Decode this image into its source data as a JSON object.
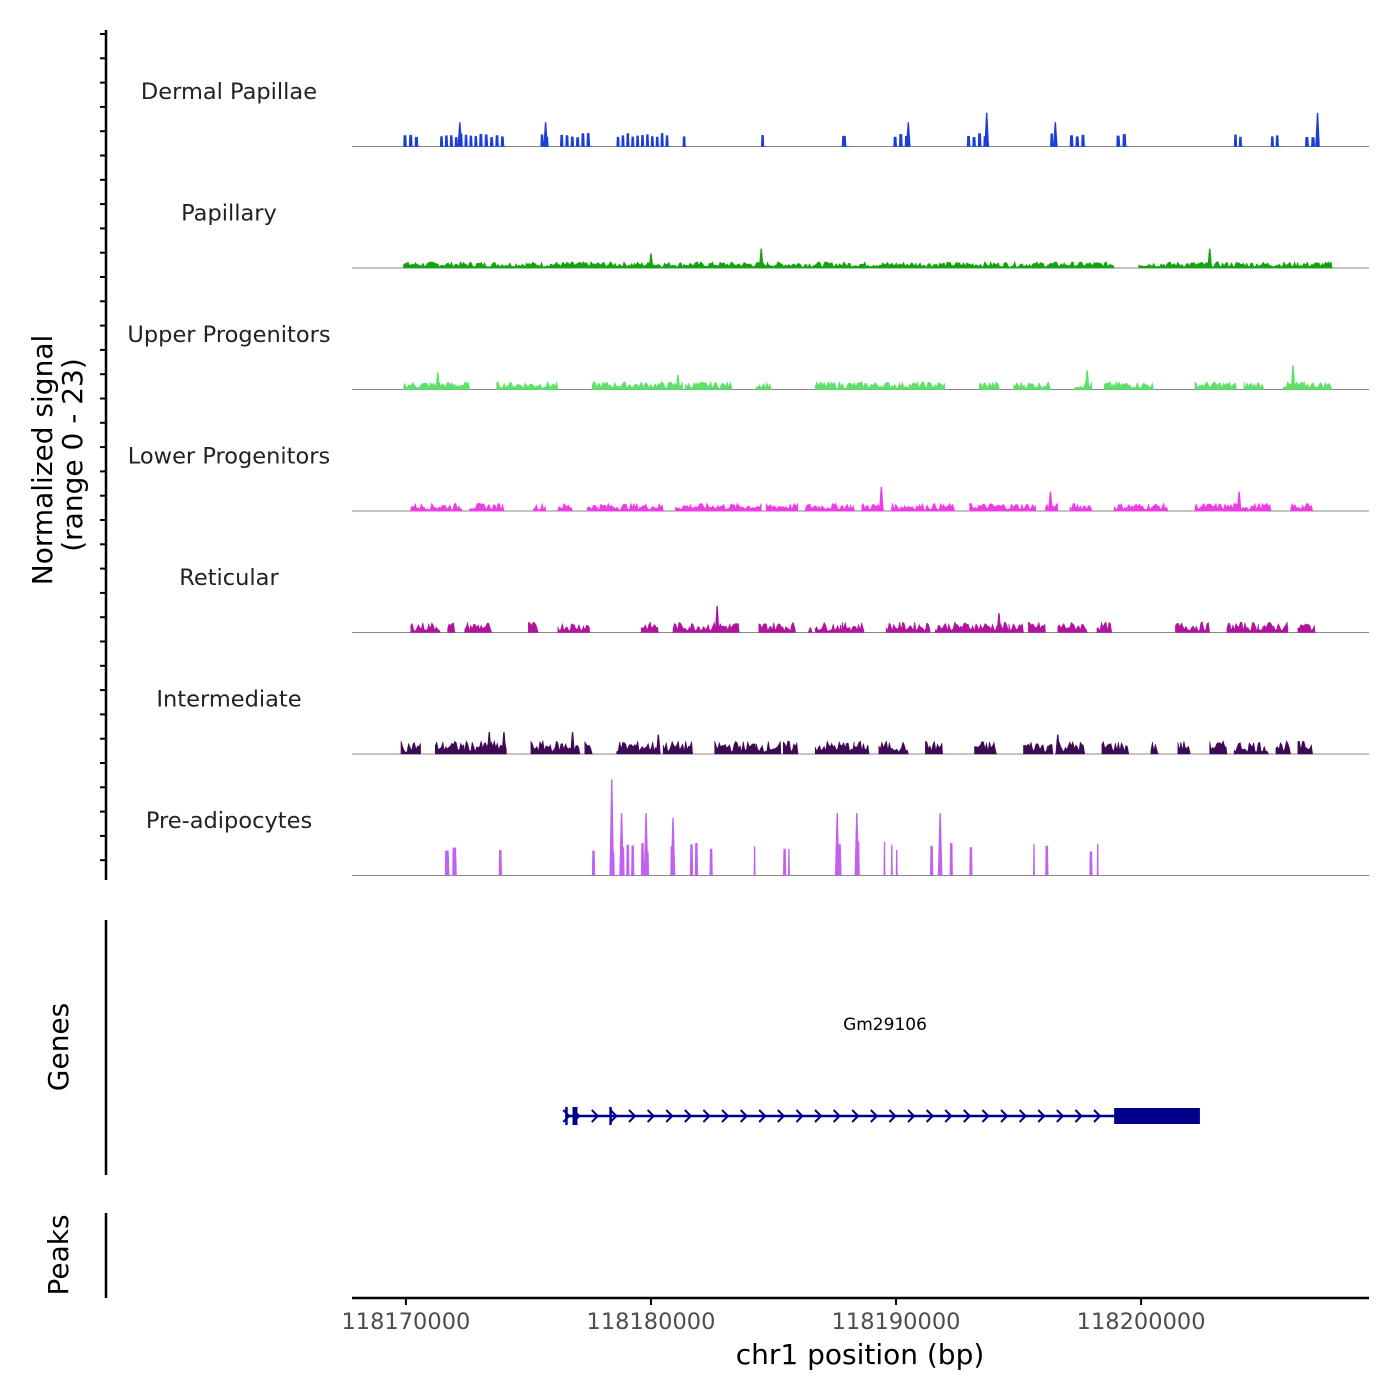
{
  "chart_data": {
    "type": "area",
    "title": "",
    "chromosome": "chr1",
    "xlabel": "chr1 position (bp)",
    "ylabel_line1": "Normalized signal",
    "ylabel_line2": "(range 0 - 23)",
    "xlim": [
      118167800,
      118209300
    ],
    "ylim": [
      0,
      23
    ],
    "x_ticks": [
      118170000,
      118180000,
      118190000,
      118200000
    ],
    "x_tick_labels": [
      "118170000",
      "118180000",
      "118190000",
      "118200000"
    ],
    "colors": {
      "Dermal Papillae": "#1b3fd6",
      "Papillary": "#12a30f",
      "Upper Progenitors": "#5ee06b",
      "Lower Progenitors": "#f23be6",
      "Reticular": "#b0159d",
      "Intermediate": "#3f0a55",
      "Pre-adipocytes": "#c062f0",
      "gene": "#00008b",
      "baseline": "#888888",
      "axis": "#000000"
    },
    "series": [
      {
        "name": "Dermal Papillae",
        "regions": [
          [
            118169900,
            118170600
          ],
          [
            118171400,
            118173000
          ],
          [
            118173000,
            118174100
          ],
          [
            118175500,
            118175900
          ],
          [
            118176300,
            118177600
          ],
          [
            118178600,
            118180800
          ],
          [
            118181300,
            118181500
          ],
          [
            118184500,
            118184700
          ],
          [
            118187800,
            118188100
          ],
          [
            118189900,
            118190600
          ],
          [
            118192900,
            118193800
          ],
          [
            118196300,
            118196500
          ],
          [
            118197100,
            118197800
          ],
          [
            118199000,
            118199500
          ],
          [
            118203800,
            118204200
          ],
          [
            118205300,
            118205700
          ],
          [
            118206700,
            118207200
          ]
        ],
        "peaks": [
          [
            118172200,
            5
          ],
          [
            118175700,
            5
          ],
          [
            118190500,
            5
          ],
          [
            118193700,
            7
          ],
          [
            118196500,
            5
          ],
          [
            118207200,
            7
          ]
        ],
        "base": 2.3
      },
      {
        "name": "Papillary",
        "regions": [
          [
            118169900,
            118184200
          ],
          [
            118184200,
            118189700
          ],
          [
            118189700,
            118198900
          ],
          [
            118199900,
            118206600
          ],
          [
            118206600,
            118207800
          ]
        ],
        "peaks": [
          [
            118184500,
            4
          ],
          [
            118202800,
            4
          ],
          [
            118180000,
            3
          ]
        ],
        "base": 1.2
      },
      {
        "name": "Upper Progenitors",
        "regions": [
          [
            118169900,
            118172600
          ],
          [
            118173700,
            118176200
          ],
          [
            118177600,
            118181300
          ],
          [
            118181400,
            118183300
          ],
          [
            118184300,
            118184900
          ],
          [
            118186700,
            118188300
          ],
          [
            118188300,
            118192000
          ],
          [
            118193400,
            118194200
          ],
          [
            118194800,
            118196300
          ],
          [
            118197300,
            118198000
          ],
          [
            118198500,
            118200500
          ],
          [
            118202200,
            118203900
          ],
          [
            118204200,
            118205000
          ],
          [
            118205800,
            118207800
          ]
        ],
        "peaks": [
          [
            118171300,
            3.5
          ],
          [
            118181100,
            3
          ],
          [
            118197800,
            4
          ],
          [
            118206200,
            5
          ]
        ],
        "base": 1.5
      },
      {
        "name": "Lower Progenitors",
        "regions": [
          [
            118170200,
            118172300
          ],
          [
            118172600,
            118174000
          ],
          [
            118175200,
            118175700
          ],
          [
            118176200,
            118176800
          ],
          [
            118177400,
            118180500
          ],
          [
            118181000,
            118182600
          ],
          [
            118182600,
            118184500
          ],
          [
            118184700,
            118186000
          ],
          [
            118186300,
            118188300
          ],
          [
            118188600,
            118189500
          ],
          [
            118189800,
            118192400
          ],
          [
            118193000,
            118195700
          ],
          [
            118196100,
            118196600
          ],
          [
            118197100,
            118198000
          ],
          [
            118198900,
            118201100
          ],
          [
            118202200,
            118204400
          ],
          [
            118204400,
            118205300
          ],
          [
            118206100,
            118207000
          ]
        ],
        "peaks": [
          [
            118189400,
            5
          ],
          [
            118196300,
            4
          ],
          [
            118204000,
            4
          ]
        ],
        "base": 1.5
      },
      {
        "name": "Reticular",
        "regions": [
          [
            118170200,
            118171400
          ],
          [
            118171700,
            118172000
          ],
          [
            118172400,
            118173500
          ],
          [
            118175000,
            118175400
          ],
          [
            118176200,
            118177500
          ],
          [
            118179600,
            118180300
          ],
          [
            118180900,
            118181600
          ],
          [
            118181600,
            118183200
          ],
          [
            118183200,
            118183600
          ],
          [
            118184400,
            118185900
          ],
          [
            118186700,
            118187800
          ],
          [
            118187800,
            118188700
          ],
          [
            118189600,
            118191400
          ],
          [
            118191600,
            118193200
          ],
          [
            118193200,
            118194600
          ],
          [
            118194600,
            118195200
          ],
          [
            118195400,
            118196100
          ],
          [
            118196600,
            118197800
          ],
          [
            118198200,
            118198800
          ],
          [
            118201400,
            118202800
          ],
          [
            118203500,
            118204800
          ],
          [
            118204800,
            118206000
          ],
          [
            118206400,
            118207100
          ]
        ],
        "peaks": [
          [
            118182700,
            5.5
          ],
          [
            118186500,
            1
          ],
          [
            118194200,
            4
          ]
        ],
        "base": 2
      },
      {
        "name": "Intermediate",
        "regions": [
          [
            118169800,
            118170600
          ],
          [
            118171200,
            118172400
          ],
          [
            118172400,
            118173300
          ],
          [
            118173300,
            118174100
          ],
          [
            118175100,
            118177100
          ],
          [
            118177300,
            118177600
          ],
          [
            118178600,
            118180300
          ],
          [
            118180500,
            118181700
          ],
          [
            118182600,
            118184300
          ],
          [
            118184300,
            118185300
          ],
          [
            118185400,
            118186000
          ],
          [
            118186700,
            118188300
          ],
          [
            118188300,
            118188900
          ],
          [
            118189300,
            118190500
          ],
          [
            118191200,
            118191900
          ],
          [
            118193200,
            118194100
          ],
          [
            118195200,
            118196400
          ],
          [
            118196600,
            118197700
          ],
          [
            118198400,
            118199500
          ],
          [
            118200400,
            118200700
          ],
          [
            118201500,
            118202000
          ],
          [
            118202800,
            118203500
          ],
          [
            118203800,
            118205200
          ],
          [
            118205500,
            118206100
          ],
          [
            118206400,
            118207000
          ]
        ],
        "peaks": [
          [
            118173400,
            4.5
          ],
          [
            118174000,
            4.5
          ],
          [
            118176800,
            4.5
          ],
          [
            118180300,
            4
          ],
          [
            118196600,
            4
          ]
        ],
        "base": 2.5
      },
      {
        "name": "Pre-adipocytes",
        "regions": [
          [
            118171600,
            118171900
          ],
          [
            118171900,
            118172200
          ],
          [
            118173800,
            118174000
          ],
          [
            118177600,
            118177800
          ],
          [
            118178400,
            118178600
          ],
          [
            118178800,
            118179400
          ],
          [
            118179600,
            118180000
          ],
          [
            118180800,
            118181100
          ],
          [
            118181600,
            118182000
          ],
          [
            118182400,
            118182600
          ],
          [
            118184200,
            118184300
          ],
          [
            118185400,
            118185600
          ],
          [
            118185600,
            118185700
          ],
          [
            118187600,
            118187900
          ],
          [
            118188400,
            118188600
          ],
          [
            118189500,
            118189600
          ],
          [
            118189800,
            118189900
          ],
          [
            118190000,
            118190100
          ],
          [
            118191400,
            118191600
          ],
          [
            118192200,
            118192400
          ],
          [
            118193000,
            118193200
          ],
          [
            118195600,
            118195700
          ],
          [
            118196100,
            118196300
          ],
          [
            118197900,
            118198100
          ],
          [
            118198200,
            118198300
          ]
        ],
        "peaks": [
          [
            118178400,
            20
          ],
          [
            118178800,
            13
          ],
          [
            118179800,
            13
          ],
          [
            118180900,
            12
          ],
          [
            118187600,
            13
          ],
          [
            118188400,
            13
          ],
          [
            118191800,
            13
          ]
        ],
        "base": 6
      }
    ],
    "genes_label": "Genes",
    "peaks_label": "Peaks",
    "gene": {
      "name": "Gm29106",
      "start": 118176500,
      "end": 118202400,
      "cds_start": 118198900,
      "cds_end": 118202400,
      "strand": "+",
      "exons": [
        [
          118176500,
          118176600
        ],
        [
          118176800,
          118177000
        ],
        [
          118178300,
          118178400
        ],
        [
          118198900,
          118202400
        ]
      ]
    }
  }
}
